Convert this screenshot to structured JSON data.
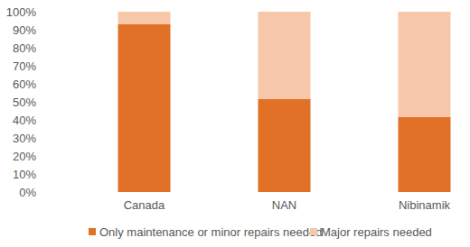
{
  "chart_data": {
    "type": "bar",
    "stacked": true,
    "categories": [
      "Canada",
      "NAN",
      "Nibinamik"
    ],
    "series": [
      {
        "name": "Only maintenance or minor repairs needed",
        "color": "#e07126",
        "values": [
          93,
          51.5,
          41.5
        ]
      },
      {
        "name": "Major repairs needed",
        "color": "#f6c7a8",
        "values": [
          7,
          48.5,
          58.5
        ]
      }
    ],
    "ylim": [
      0,
      100
    ],
    "yticks": [
      {
        "value": 0,
        "label": "0%"
      },
      {
        "value": 10,
        "label": "10%"
      },
      {
        "value": 20,
        "label": "20%"
      },
      {
        "value": 30,
        "label": "30%"
      },
      {
        "value": 40,
        "label": "40%"
      },
      {
        "value": 50,
        "label": "50%"
      },
      {
        "value": 60,
        "label": "60%"
      },
      {
        "value": 70,
        "label": "70%"
      },
      {
        "value": 80,
        "label": "80%"
      },
      {
        "value": 90,
        "label": "90%"
      },
      {
        "value": 100,
        "label": "100%"
      }
    ],
    "grid": false,
    "legend": "bottom"
  }
}
